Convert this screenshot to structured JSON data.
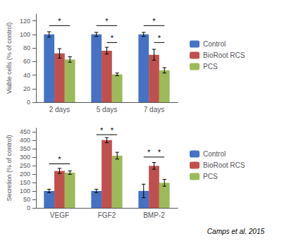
{
  "chart_data": [
    {
      "type": "bar",
      "categories": [
        "2 days",
        "5 days",
        "7 days"
      ],
      "ylabel": "Viable cells (% of control)",
      "series": [
        {
          "name": "Control",
          "color": "#4472C4",
          "values": [
            100,
            100,
            100
          ],
          "errors": [
            4,
            3,
            3
          ]
        },
        {
          "name": "BioRoot RCS",
          "color": "#C0504D",
          "values": [
            72,
            76,
            70
          ],
          "errors": [
            7,
            5,
            8
          ]
        },
        {
          "name": "PCS",
          "color": "#9BBB59",
          "values": [
            63,
            41,
            47
          ],
          "errors": [
            4,
            2,
            4
          ]
        }
      ],
      "ylim": [
        0,
        130
      ],
      "yticks": [
        0,
        20,
        40,
        60,
        80,
        100,
        120
      ],
      "grid": false,
      "legend": "right",
      "annotations": [
        {
          "category": "2 days",
          "from": "Control",
          "to": "PCS",
          "y": 113,
          "text": "*"
        },
        {
          "category": "5 days",
          "from": "Control",
          "to": "PCS",
          "y": 113,
          "text": "*"
        },
        {
          "category": "7 days",
          "from": "Control",
          "to": "PCS",
          "y": 113,
          "text": "*"
        },
        {
          "category": "5 days",
          "from": "BioRoot RCS",
          "to": "PCS",
          "y": 88,
          "text": "*"
        },
        {
          "category": "7 days",
          "from": "BioRoot RCS",
          "to": "PCS",
          "y": 88,
          "text": "*"
        }
      ]
    },
    {
      "type": "bar",
      "categories": [
        "VEGF",
        "FGF2",
        "BMP-2"
      ],
      "ylabel": "Secretion (% of control)",
      "series": [
        {
          "name": "Control",
          "color": "#4472C4",
          "values": [
            100,
            100,
            100
          ],
          "errors": [
            10,
            10,
            40
          ]
        },
        {
          "name": "BioRoot RCS",
          "color": "#C0504D",
          "values": [
            218,
            400,
            248
          ],
          "errors": [
            15,
            15,
            20
          ]
        },
        {
          "name": "PCS",
          "color": "#9BBB59",
          "values": [
            208,
            308,
            148
          ],
          "errors": [
            10,
            20,
            20
          ]
        }
      ],
      "ylim": [
        0,
        470
      ],
      "yticks": [
        0,
        50,
        100,
        150,
        200,
        250,
        300,
        350,
        400,
        450
      ],
      "grid": false,
      "legend": "right",
      "annotations": [
        {
          "category": "VEGF",
          "from": "Control",
          "to": "PCS",
          "y": 260,
          "text": "*"
        },
        {
          "category": "FGF2",
          "from": "Control",
          "to": "BioRoot RCS",
          "y": 432,
          "text": "*"
        },
        {
          "category": "FGF2",
          "from": "BioRoot RCS",
          "to": "PCS",
          "y": 432,
          "text": "*"
        },
        {
          "category": "BMP-2",
          "from": "Control",
          "to": "BioRoot RCS",
          "y": 300,
          "text": "*"
        },
        {
          "category": "BMP-2",
          "from": "BioRoot RCS",
          "to": "PCS",
          "y": 300,
          "text": "*"
        }
      ],
      "citation": "Camps et al. 2015"
    }
  ]
}
